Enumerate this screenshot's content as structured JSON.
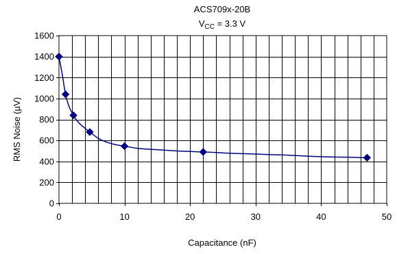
{
  "chart_data": {
    "type": "line",
    "title": "ACS709x-20B",
    "subtitle": {
      "symbol": "V",
      "subscript": "CC",
      "rest": " = 3.3 V"
    },
    "xlabel": "Capacitance (nF)",
    "ylabel": "RMS Noise (µV)",
    "xlim": [
      0,
      50
    ],
    "ylim": [
      0,
      1600
    ],
    "x_ticks": [
      0,
      10,
      20,
      30,
      40,
      50
    ],
    "y_ticks": [
      0,
      200,
      400,
      600,
      800,
      1000,
      1200,
      1400,
      1600
    ],
    "x_grid_step": 2,
    "y_grid_step": 200,
    "grid": true,
    "legend": "none",
    "series_color": "#000080",
    "marker": "diamond",
    "series": [
      {
        "x": [
          0,
          1,
          2.2,
          4.7,
          10,
          22,
          47
        ],
        "y": [
          1400,
          1040,
          840,
          680,
          545,
          490,
          435
        ]
      }
    ],
    "curve": {
      "x": [
        0,
        0.5,
        1,
        1.5,
        2.2,
        3,
        4,
        4.7,
        6,
        7,
        8,
        9,
        10,
        12,
        14,
        16,
        18,
        20,
        22,
        24,
        26,
        28,
        30,
        32,
        34,
        36,
        38,
        40,
        42,
        44,
        46,
        47
      ],
      "y": [
        1400,
        1230,
        1040,
        930,
        840,
        770,
        715,
        680,
        620,
        590,
        570,
        555,
        545,
        525,
        515,
        508,
        500,
        495,
        490,
        485,
        478,
        474,
        470,
        465,
        462,
        456,
        450,
        445,
        442,
        440,
        437,
        435
      ]
    }
  }
}
